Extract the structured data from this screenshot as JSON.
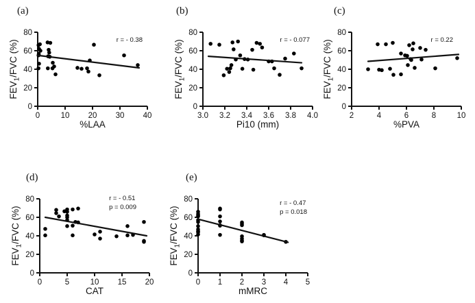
{
  "figure_title": "",
  "colors": {
    "foreground": "#111111",
    "background": "#ffffff",
    "marker": "#000000"
  },
  "ylabel": {
    "pre": "FEV",
    "sub": "1",
    "post": "/FVC (%)"
  },
  "chart_data": [
    {
      "type": "scatter",
      "panel": "(a)",
      "xlabel": "%LAA",
      "ylabel": "FEV1/FVC (%)",
      "xlim": [
        0,
        40
      ],
      "ylim": [
        0,
        80
      ],
      "xticks": [
        0,
        10,
        20,
        30,
        40
      ],
      "xtick_labels": [
        "0",
        "10",
        "20",
        "30",
        "40"
      ],
      "yticks": [
        0,
        20,
        40,
        60,
        80
      ],
      "ytick_labels": [
        "0",
        "20",
        "40",
        "60",
        "80"
      ],
      "grid": false,
      "legend": null,
      "annotations": [
        "r = - 0.38"
      ],
      "points": [
        [
          0.3,
          66
        ],
        [
          0.5,
          62
        ],
        [
          0.8,
          67
        ],
        [
          1.0,
          60
        ],
        [
          0.4,
          56.5
        ],
        [
          0.3,
          55
        ],
        [
          0.5,
          46
        ],
        [
          0.3,
          41
        ],
        [
          3.6,
          69
        ],
        [
          4.6,
          68.5
        ],
        [
          4.0,
          61
        ],
        [
          4.2,
          58
        ],
        [
          3.8,
          54
        ],
        [
          4.4,
          53.5
        ],
        [
          5.5,
          47
        ],
        [
          3.7,
          41
        ],
        [
          5.4,
          41
        ],
        [
          6.0,
          43
        ],
        [
          6.5,
          34.5
        ],
        [
          14.5,
          41.5
        ],
        [
          16.0,
          40.5
        ],
        [
          18.0,
          41
        ],
        [
          18.5,
          37.5
        ],
        [
          19.0,
          49.5
        ],
        [
          20.5,
          66.5
        ],
        [
          22.5,
          33.5
        ],
        [
          31.5,
          55
        ],
        [
          36.5,
          44.5
        ]
      ],
      "regression_line": {
        "x1": 0,
        "y1": 55,
        "x2": 37,
        "y2": 41.5
      }
    },
    {
      "type": "scatter",
      "panel": "(b)",
      "xlabel": "Pi10 (mm)",
      "ylabel": "FEV1/FVC (%)",
      "xlim": [
        3.0,
        4.0
      ],
      "ylim": [
        0,
        80
      ],
      "xticks": [
        3.0,
        3.2,
        3.4,
        3.6,
        3.8,
        4.0
      ],
      "xtick_labels": [
        "3.0",
        "3.2",
        "3.4",
        "3.6",
        "3.8",
        "4.0"
      ],
      "yticks": [
        0,
        20,
        40,
        60,
        80
      ],
      "ytick_labels": [
        "0",
        "20",
        "40",
        "60",
        "80"
      ],
      "grid": false,
      "legend": null,
      "annotations": [
        "r = - 0.077"
      ],
      "points": [
        [
          3.07,
          67.5
        ],
        [
          3.15,
          66.5
        ],
        [
          3.19,
          33.5
        ],
        [
          3.22,
          40.5
        ],
        [
          3.24,
          37
        ],
        [
          3.25,
          41
        ],
        [
          3.26,
          44.5
        ],
        [
          3.27,
          69
        ],
        [
          3.28,
          61.5
        ],
        [
          3.3,
          50.5
        ],
        [
          3.32,
          70
        ],
        [
          3.34,
          55
        ],
        [
          3.36,
          40.5
        ],
        [
          3.38,
          51
        ],
        [
          3.41,
          50.5
        ],
        [
          3.45,
          61
        ],
        [
          3.46,
          39.5
        ],
        [
          3.49,
          68.5
        ],
        [
          3.52,
          67.5
        ],
        [
          3.54,
          63.5
        ],
        [
          3.6,
          48.5
        ],
        [
          3.63,
          48.5
        ],
        [
          3.65,
          41
        ],
        [
          3.7,
          34
        ],
        [
          3.75,
          51.5
        ],
        [
          3.83,
          57
        ],
        [
          3.9,
          41
        ]
      ],
      "regression_line": {
        "x1": 3.05,
        "y1": 54,
        "x2": 3.9,
        "y2": 47
      }
    },
    {
      "type": "scatter",
      "panel": "(c)",
      "xlabel": "%PVA",
      "ylabel": "FEV1/FVC (%)",
      "xlim": [
        2,
        10
      ],
      "ylim": [
        0,
        80
      ],
      "xticks": [
        2,
        4,
        6,
        8,
        10
      ],
      "xtick_labels": [
        "2",
        "4",
        "6",
        "8",
        "10"
      ],
      "yticks": [
        0,
        20,
        40,
        60,
        80
      ],
      "ytick_labels": [
        "0",
        "20",
        "40",
        "60",
        "80"
      ],
      "grid": false,
      "legend": null,
      "annotations": [
        "r = 0.22"
      ],
      "points": [
        [
          3.2,
          40
        ],
        [
          3.9,
          67
        ],
        [
          4.0,
          39.5
        ],
        [
          4.2,
          39
        ],
        [
          4.5,
          67
        ],
        [
          4.8,
          40.5
        ],
        [
          5.0,
          68.5
        ],
        [
          5.05,
          34
        ],
        [
          5.6,
          34.5
        ],
        [
          5.6,
          57
        ],
        [
          5.9,
          55
        ],
        [
          6.05,
          54.5
        ],
        [
          6.1,
          44.5
        ],
        [
          6.2,
          66
        ],
        [
          6.3,
          51
        ],
        [
          6.35,
          50
        ],
        [
          6.45,
          61.5
        ],
        [
          6.5,
          68
        ],
        [
          6.6,
          41.5
        ],
        [
          7.0,
          63
        ],
        [
          7.1,
          50.5
        ],
        [
          7.4,
          61
        ],
        [
          8.1,
          41
        ],
        [
          9.7,
          52
        ]
      ],
      "regression_line": {
        "x1": 3.2,
        "y1": 48.5,
        "x2": 9.8,
        "y2": 56
      }
    },
    {
      "type": "scatter",
      "panel": "(d)",
      "xlabel": "CAT",
      "ylabel": "FEV1/FVC (%)",
      "xlim": [
        0,
        20
      ],
      "ylim": [
        0,
        80
      ],
      "xticks": [
        0,
        5,
        10,
        15,
        20
      ],
      "xtick_labels": [
        "0",
        "5",
        "10",
        "15",
        "20"
      ],
      "yticks": [
        0,
        20,
        40,
        60,
        80
      ],
      "ytick_labels": [
        "0",
        "20",
        "40",
        "60",
        "80"
      ],
      "grid": false,
      "legend": null,
      "annotations": [
        "r = - 0.51",
        "p = 0.009"
      ],
      "points": [
        [
          1,
          47.5
        ],
        [
          1,
          40.5
        ],
        [
          3,
          68
        ],
        [
          3,
          64.5
        ],
        [
          3.5,
          61
        ],
        [
          4.5,
          66.5
        ],
        [
          5,
          68.5
        ],
        [
          5,
          66
        ],
        [
          5,
          62
        ],
        [
          5,
          60
        ],
        [
          5,
          57
        ],
        [
          5,
          50.5
        ],
        [
          6,
          68.5
        ],
        [
          6,
          51
        ],
        [
          6,
          40.5
        ],
        [
          6.5,
          55
        ],
        [
          7,
          69.5
        ],
        [
          7,
          54.5
        ],
        [
          10,
          41.5
        ],
        [
          11,
          44.5
        ],
        [
          11,
          37
        ],
        [
          14,
          39.5
        ],
        [
          16,
          50.5
        ],
        [
          16,
          40.5
        ],
        [
          17,
          41
        ],
        [
          19,
          55
        ],
        [
          19,
          34.5
        ],
        [
          19,
          33.5
        ]
      ],
      "regression_line": {
        "x1": 1,
        "y1": 60,
        "x2": 19.5,
        "y2": 40
      }
    },
    {
      "type": "scatter",
      "panel": "(e)",
      "xlabel": "mMRC",
      "ylabel": "FEV1/FVC (%)",
      "xlim": [
        0,
        5
      ],
      "ylim": [
        0,
        80
      ],
      "xticks": [
        0,
        1,
        2,
        3,
        4,
        5
      ],
      "xtick_labels": [
        "0",
        "1",
        "2",
        "3",
        "4",
        "5"
      ],
      "yticks": [
        0,
        20,
        40,
        60,
        80
      ],
      "ytick_labels": [
        "0",
        "20",
        "40",
        "60",
        "80"
      ],
      "grid": false,
      "legend": null,
      "annotations": [
        "r = - 0.47",
        "p = 0.018"
      ],
      "points": [
        [
          0,
          66
        ],
        [
          0,
          63.5
        ],
        [
          0,
          62
        ],
        [
          0,
          61
        ],
        [
          0,
          57
        ],
        [
          0,
          55
        ],
        [
          0,
          50.5
        ],
        [
          0,
          47
        ],
        [
          0,
          45
        ],
        [
          0,
          44
        ],
        [
          0,
          41.5
        ],
        [
          1,
          69.5
        ],
        [
          1,
          68.5
        ],
        [
          1,
          61
        ],
        [
          1,
          55.5
        ],
        [
          1,
          51.5
        ],
        [
          1,
          51
        ],
        [
          1,
          41
        ],
        [
          2,
          54.5
        ],
        [
          2,
          53
        ],
        [
          2,
          51.5
        ],
        [
          2,
          39.5
        ],
        [
          2,
          37
        ],
        [
          2,
          35
        ],
        [
          2,
          34
        ],
        [
          3,
          41
        ],
        [
          3,
          40.5
        ],
        [
          4,
          33.5
        ]
      ],
      "regression_line": {
        "x1": 0,
        "y1": 58,
        "x2": 4.1,
        "y2": 33
      }
    }
  ]
}
